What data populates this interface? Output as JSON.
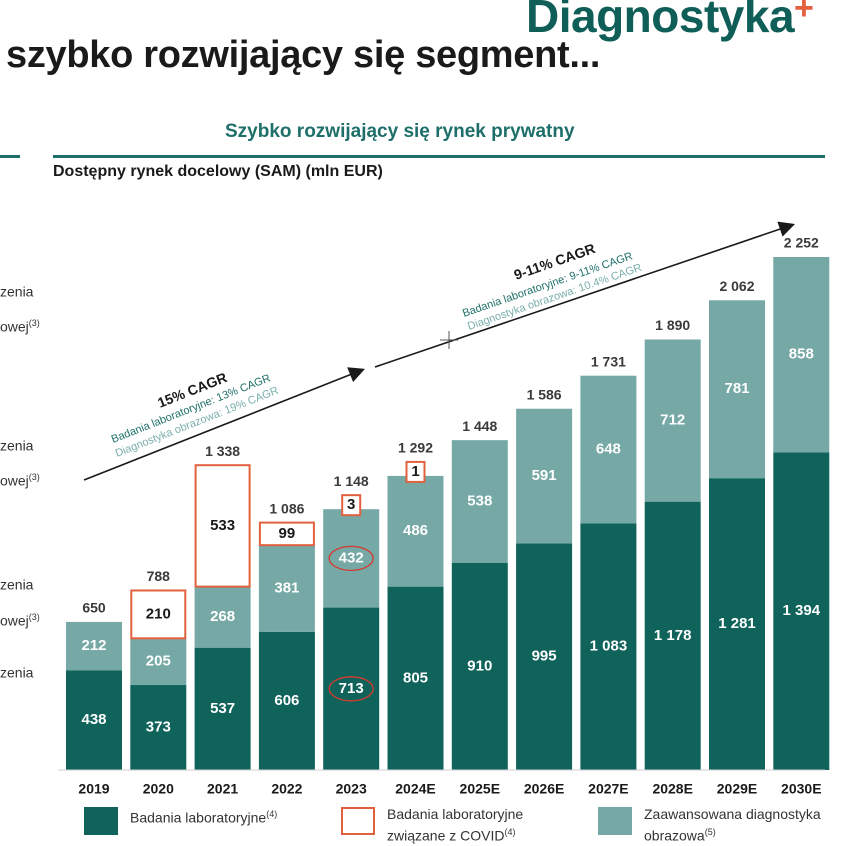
{
  "header": {
    "logo": "Diagnostyka",
    "logo_plus": "+",
    "title": "szybko rozwijający się segment...",
    "subtitle": "Szybko rozwijający się rynek prywatny"
  },
  "left_cut_labels": [
    {
      "text": "zenia",
      "sup": ""
    },
    {
      "text": "owej",
      "sup": "(3)"
    },
    {
      "text": "zenia",
      "sup": ""
    },
    {
      "text": "owej",
      "sup": "(3)"
    },
    {
      "text": "zenia",
      "sup": ""
    },
    {
      "text": "owej",
      "sup": "(3)"
    },
    {
      "text": "zenia",
      "sup": ""
    }
  ],
  "cagr": {
    "first": {
      "title": "15% CAGR",
      "lab": "Badania laboratoryjne: 13% CAGR",
      "img": "Diagnostyka obrazowa: 19% CAGR"
    },
    "second": {
      "title": "9-11% CAGR",
      "lab": "Badania laboratoryjne: 9-11% CAGR",
      "img": "Diagnostyka obrazowa: 10.4% CAGR"
    }
  },
  "legend": [
    {
      "label": "Badania laboratoryjne",
      "sup": "(4)",
      "style": "solid",
      "color": "#0f635b"
    },
    {
      "label": "Badania laboratoryjne związane z COVID",
      "sup": "(4)",
      "style": "outline",
      "color": "#e2603e"
    },
    {
      "label": "Zaawansowana diagnostyka obrazowa",
      "sup": "(5)",
      "style": "solid",
      "color": "#76a9a6"
    }
  ],
  "annotations": {
    "circled_values": [
      "432",
      "713"
    ],
    "circle_color": "#d63a2f"
  },
  "chart_data": {
    "type": "bar",
    "stacked": true,
    "title": "Dostępny rynek docelowy (SAM) (mln EUR)",
    "categories": [
      "2019",
      "2020",
      "2021",
      "2022",
      "2023",
      "2024E",
      "2025E",
      "2026E",
      "2027E",
      "2028E",
      "2029E",
      "2030E"
    ],
    "series": [
      {
        "name": "Badania laboratoryjne",
        "color": "#0f635b",
        "values": [
          438,
          373,
          537,
          606,
          713,
          805,
          910,
          995,
          1083,
          1178,
          1281,
          1394
        ],
        "labels": [
          "438",
          "373",
          "537",
          "606",
          "713",
          "805",
          "910",
          "995",
          "1 083",
          "1 178",
          "1 281",
          "1 394"
        ]
      },
      {
        "name": "Zaawansowana diagnostyka obrazowa",
        "color": "#76a9a6",
        "values": [
          212,
          205,
          268,
          381,
          432,
          486,
          538,
          591,
          648,
          712,
          781,
          858
        ],
        "labels": [
          "212",
          "205",
          "268",
          "381",
          "432",
          "486",
          "538",
          "591",
          "648",
          "712",
          "781",
          "858"
        ]
      },
      {
        "name": "Badania laboratoryjne związane z COVID",
        "color": "#e2603e",
        "values": [
          0,
          210,
          533,
          99,
          3,
          1,
          0,
          0,
          0,
          0,
          0,
          0
        ],
        "labels": [
          "",
          "210",
          "533",
          "99",
          "3",
          "1",
          "",
          "",
          "",
          "",
          "",
          ""
        ]
      }
    ],
    "totals": [
      "650",
      "788",
      "1 338",
      "1 086",
      "1 148",
      "1 292",
      "1 448",
      "1 586",
      "1 731",
      "1 890",
      "2 062",
      "2 252"
    ],
    "ylim": [
      0,
      2252
    ]
  }
}
